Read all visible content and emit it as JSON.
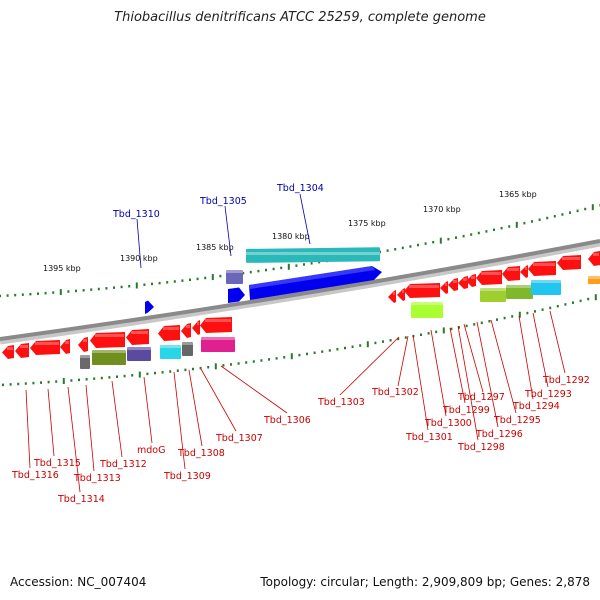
{
  "title": "Thiobacillus denitrificans ATCC 25259, complete genome",
  "accession": "Accession: NC_007404",
  "topology": "Topology: circular; Length: 2,909,809 bp; Genes: 2,878",
  "colors": {
    "forward_label": "#0000aa",
    "reverse_label": "#cc0000",
    "backbone": "#8a8a8a",
    "ticks": "#2a7a2a"
  },
  "scale_labels": [
    "1395 kbp",
    "1390 kbp",
    "1385 kbp",
    "1380 kbp",
    "1375 kbp",
    "1370 kbp",
    "1365 kbp"
  ],
  "forward_genes": [
    "Tbd_1310",
    "Tbd_1305",
    "Tbd_1304"
  ],
  "reverse_genes": [
    "Tbd_1316",
    "Tbd_1315",
    "Tbd_1314",
    "Tbd_1313",
    "Tbd_1312",
    "mdoG",
    "Tbd_1309",
    "Tbd_1308",
    "Tbd_1307",
    "Tbd_1306",
    "Tbd_1303",
    "Tbd_1302",
    "Tbd_1301",
    "Tbd_1300",
    "Tbd_1299",
    "Tbd_1298",
    "Tbd_1297",
    "Tbd_1296",
    "Tbd_1295",
    "Tbd_1294",
    "Tbd_1293",
    "Tbd_1292"
  ]
}
